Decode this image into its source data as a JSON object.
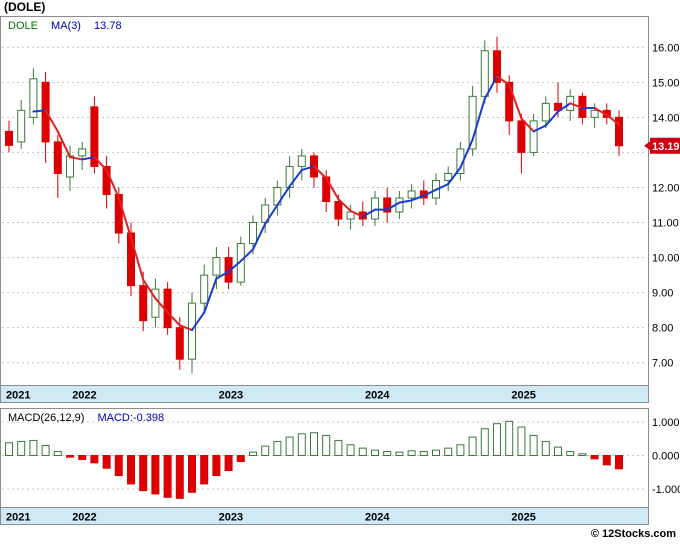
{
  "title": "(DOLE)",
  "watermark": "© 12Stocks.com",
  "price_panel": {
    "legend": {
      "symbol": "DOLE",
      "ma_label": "MA(3)",
      "ma_value": "13.78"
    },
    "last_price_badge": "13.19"
  },
  "macd_panel": {
    "legend": {
      "label": "MACD(26,12,9)",
      "value": "MACD:-0.398"
    }
  },
  "colors": {
    "up": "#3a7a3a",
    "down": "#dd0000",
    "ma_up": "#1a3ccc",
    "ma_down": "#e02222",
    "grid": "#c4c4c4",
    "band": "#cfe9f5",
    "border": "#8c8c8c",
    "badge_bg": "#cc0011"
  },
  "chart_data": [
    {
      "type": "candlestick",
      "title": "(DOLE)",
      "overlay": "MA(3)",
      "ylim": [
        6.45,
        16.75
      ],
      "grid_values": [
        7,
        8,
        9,
        10,
        11,
        12,
        13,
        14,
        15,
        16
      ],
      "yticks": [
        {
          "v": 16,
          "label": "16.00"
        },
        {
          "v": 15,
          "label": "15.00"
        },
        {
          "v": 14,
          "label": "14.00"
        },
        {
          "v": 12,
          "label": "12.00"
        },
        {
          "v": 11,
          "label": "11.00"
        },
        {
          "v": 10,
          "label": "10.00"
        },
        {
          "v": 9,
          "label": "9.00"
        },
        {
          "v": 8,
          "label": "8.00"
        },
        {
          "v": 7,
          "label": "7.00"
        }
      ],
      "x_year_labels": [
        {
          "label": "2021",
          "index": 0
        },
        {
          "label": "2022",
          "index": 6
        },
        {
          "label": "2023",
          "index": 18
        },
        {
          "label": "2024",
          "index": 30
        },
        {
          "label": "2025",
          "index": 42
        }
      ],
      "last_price": 13.19,
      "candles": [
        [
          13.6,
          13.9,
          13.0,
          13.2
        ],
        [
          13.3,
          14.5,
          13.1,
          14.2
        ],
        [
          14.0,
          15.4,
          13.8,
          15.1
        ],
        [
          15.0,
          15.3,
          12.7,
          13.3
        ],
        [
          13.3,
          13.5,
          11.7,
          12.4
        ],
        [
          12.3,
          13.2,
          11.9,
          12.9
        ],
        [
          12.9,
          13.3,
          12.5,
          13.1
        ],
        [
          14.3,
          14.6,
          12.4,
          12.6
        ],
        [
          12.6,
          12.9,
          11.4,
          11.8
        ],
        [
          11.8,
          12.0,
          10.4,
          10.7
        ],
        [
          10.7,
          11.0,
          8.9,
          9.2
        ],
        [
          9.2,
          9.6,
          7.9,
          8.2
        ],
        [
          8.3,
          9.4,
          8.0,
          9.1
        ],
        [
          9.1,
          9.3,
          7.8,
          8.0
        ],
        [
          8.0,
          8.3,
          6.8,
          7.1
        ],
        [
          7.1,
          9.0,
          6.7,
          8.7
        ],
        [
          8.7,
          9.8,
          8.4,
          9.5
        ],
        [
          9.5,
          10.3,
          9.1,
          10.0
        ],
        [
          10.0,
          10.3,
          9.1,
          9.3
        ],
        [
          9.3,
          10.6,
          9.2,
          10.4
        ],
        [
          10.4,
          11.2,
          10.1,
          11.0
        ],
        [
          11.0,
          11.7,
          10.7,
          11.5
        ],
        [
          11.5,
          12.2,
          11.2,
          12.0
        ],
        [
          12.0,
          12.9,
          11.7,
          12.6
        ],
        [
          12.6,
          13.1,
          12.2,
          12.9
        ],
        [
          12.9,
          13.0,
          12.0,
          12.3
        ],
        [
          12.3,
          12.5,
          11.3,
          11.6
        ],
        [
          11.6,
          11.8,
          10.9,
          11.1
        ],
        [
          11.1,
          11.5,
          10.8,
          11.3
        ],
        [
          11.3,
          11.6,
          10.9,
          11.1
        ],
        [
          11.1,
          11.9,
          10.9,
          11.7
        ],
        [
          11.7,
          12.0,
          11.0,
          11.3
        ],
        [
          11.3,
          11.9,
          11.1,
          11.7
        ],
        [
          11.7,
          12.1,
          11.4,
          11.9
        ],
        [
          11.9,
          12.2,
          11.5,
          11.7
        ],
        [
          11.7,
          12.4,
          11.5,
          12.2
        ],
        [
          12.2,
          12.6,
          11.9,
          12.4
        ],
        [
          12.4,
          13.3,
          12.2,
          13.1
        ],
        [
          13.1,
          14.9,
          12.9,
          14.6
        ],
        [
          14.6,
          16.2,
          14.4,
          15.9
        ],
        [
          15.9,
          16.3,
          14.7,
          15.0
        ],
        [
          15.0,
          15.2,
          13.5,
          13.9
        ],
        [
          13.9,
          14.1,
          12.4,
          13.0
        ],
        [
          13.0,
          14.1,
          12.9,
          13.9
        ],
        [
          13.9,
          14.6,
          13.7,
          14.4
        ],
        [
          14.4,
          15.0,
          14.0,
          14.2
        ],
        [
          14.2,
          14.8,
          13.9,
          14.6
        ],
        [
          14.6,
          14.7,
          13.8,
          14.0
        ],
        [
          14.0,
          14.4,
          13.7,
          14.2
        ],
        [
          14.2,
          14.4,
          13.8,
          14.0
        ],
        [
          14.0,
          14.2,
          12.9,
          13.19
        ]
      ]
    },
    {
      "type": "bar",
      "label": "MACD(26,12,9)",
      "last_value": -0.398,
      "ylim": [
        -1.45,
        1.3
      ],
      "yticks": [
        {
          "v": 1,
          "label": "1.000"
        },
        {
          "v": 0,
          "label": "0.000"
        },
        {
          "v": -1,
          "label": "-1.000"
        }
      ],
      "values": [
        0.38,
        0.42,
        0.45,
        0.3,
        0.12,
        -0.05,
        -0.12,
        -0.22,
        -0.38,
        -0.6,
        -0.85,
        -1.05,
        -1.15,
        -1.25,
        -1.28,
        -1.1,
        -0.85,
        -0.6,
        -0.45,
        -0.18,
        0.1,
        0.28,
        0.42,
        0.55,
        0.65,
        0.68,
        0.6,
        0.45,
        0.32,
        0.22,
        0.16,
        0.12,
        0.1,
        0.14,
        0.12,
        0.16,
        0.22,
        0.32,
        0.55,
        0.8,
        0.95,
        1.02,
        0.85,
        0.6,
        0.42,
        0.25,
        0.12,
        0.05,
        -0.1,
        -0.28,
        -0.398
      ]
    }
  ]
}
